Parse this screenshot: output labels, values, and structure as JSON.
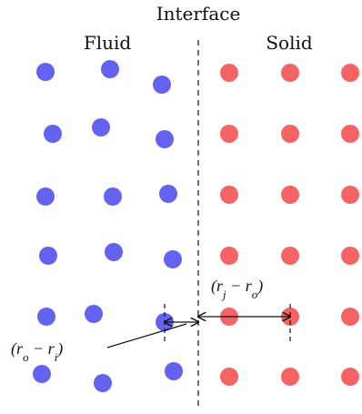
{
  "labels": {
    "title": "Interface",
    "left_region": "Fluid",
    "right_region": "Solid",
    "eq_right": "(r_j − r_o)",
    "eq_left": "(r_o − r_i)"
  },
  "colors": {
    "fluid": "#6363f0",
    "solid": "#f46464",
    "line": "#111111"
  },
  "grid": {
    "fluid_rows": 6,
    "fluid_cols": 3,
    "solid_rows": 6,
    "solid_cols": 3
  }
}
